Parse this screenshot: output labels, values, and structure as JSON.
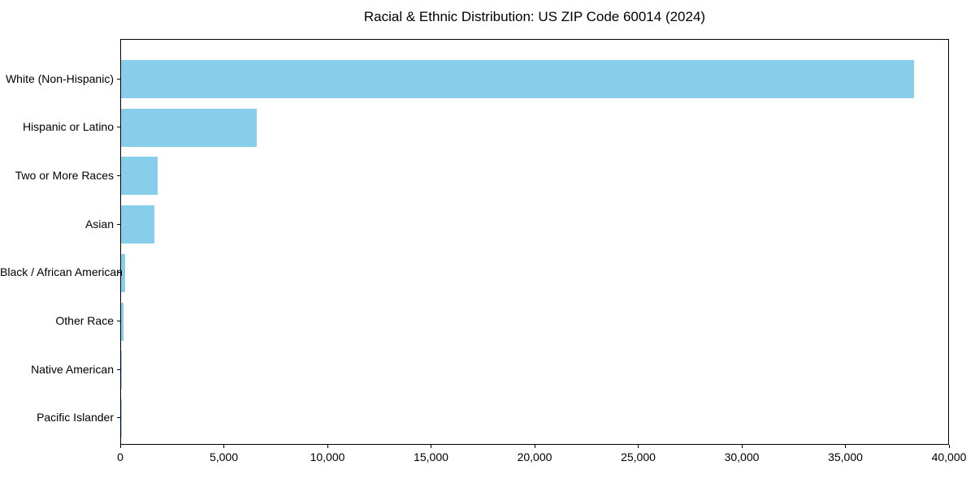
{
  "chart_data": {
    "type": "bar",
    "orientation": "horizontal",
    "title": "Racial & Ethnic Distribution: US ZIP Code 60014 (2024)",
    "categories": [
      "White (Non-Hispanic)",
      "Hispanic or Latino",
      "Two or More Races",
      "Asian",
      "Black / African American",
      "Other Race",
      "Native American",
      "Pacific Islander"
    ],
    "values": [
      38280,
      6550,
      1765,
      1610,
      210,
      130,
      30,
      10
    ],
    "xlabel": "",
    "ylabel": "",
    "xlim": [
      0,
      40000
    ],
    "xticks": [
      {
        "value": 0,
        "label": "0"
      },
      {
        "value": 5000,
        "label": "5,000"
      },
      {
        "value": 10000,
        "label": "10,000"
      },
      {
        "value": 15000,
        "label": "15,000"
      },
      {
        "value": 20000,
        "label": "20,000"
      },
      {
        "value": 25000,
        "label": "25,000"
      },
      {
        "value": 30000,
        "label": "30,000"
      },
      {
        "value": 35000,
        "label": "35,000"
      },
      {
        "value": 40000,
        "label": "40,000"
      }
    ],
    "grid": false,
    "legend": null,
    "colors": {
      "bar": "#87CEEB",
      "spine": "#000000",
      "text": "#000000",
      "background": "#ffffff"
    }
  }
}
